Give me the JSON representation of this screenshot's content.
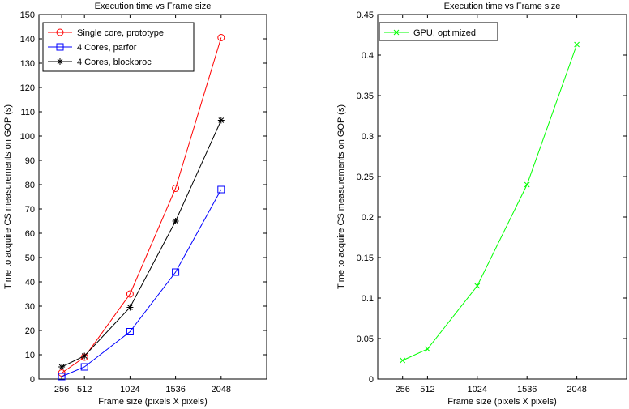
{
  "chart_data": [
    {
      "type": "line",
      "title": "Execution time vs Frame size",
      "xlabel": "Frame size (pixels X pixels)",
      "ylabel": "Time to acquire CS measurements on GOP (s)",
      "x": [
        256,
        512,
        1024,
        1536,
        2048
      ],
      "xlim": [
        0,
        2560
      ],
      "ylim": [
        0,
        150
      ],
      "xticks": [
        256,
        512,
        1024,
        1536,
        2048
      ],
      "yticks": [
        0,
        10,
        20,
        30,
        40,
        50,
        60,
        70,
        80,
        90,
        100,
        110,
        120,
        130,
        140,
        150
      ],
      "legend_position": "top-left",
      "grid": false,
      "series": [
        {
          "name": "Single core, prototype",
          "color": "#ff0000",
          "marker": "circle",
          "values": [
            2.5,
            9,
            35,
            78.5,
            140.5
          ]
        },
        {
          "name": "4 Cores, parfor",
          "color": "#0000ff",
          "marker": "square",
          "values": [
            1,
            5,
            19.5,
            44,
            78
          ]
        },
        {
          "name": "4 Cores, blockproc",
          "color": "#000000",
          "marker": "asterisk",
          "values": [
            5,
            9.5,
            29.5,
            65,
            106.5
          ]
        }
      ]
    },
    {
      "type": "line",
      "title": "Execution time vs Frame size",
      "xlabel": "Frame size (pixels X pixels)",
      "ylabel": "Time to acquire CS measurements on GOP (s)",
      "x": [
        256,
        512,
        1024,
        1536,
        2048
      ],
      "xlim": [
        0,
        2560
      ],
      "ylim": [
        0,
        0.45
      ],
      "xticks": [
        256,
        512,
        1024,
        1536,
        2048
      ],
      "yticks": [
        0,
        0.05,
        0.1,
        0.15,
        0.2,
        0.25,
        0.3,
        0.35,
        0.4,
        0.45
      ],
      "legend_position": "top-left",
      "grid": false,
      "series": [
        {
          "name": "GPU, optimized",
          "color": "#00ff00",
          "marker": "x",
          "values": [
            0.023,
            0.037,
            0.115,
            0.24,
            0.413
          ]
        }
      ]
    }
  ]
}
